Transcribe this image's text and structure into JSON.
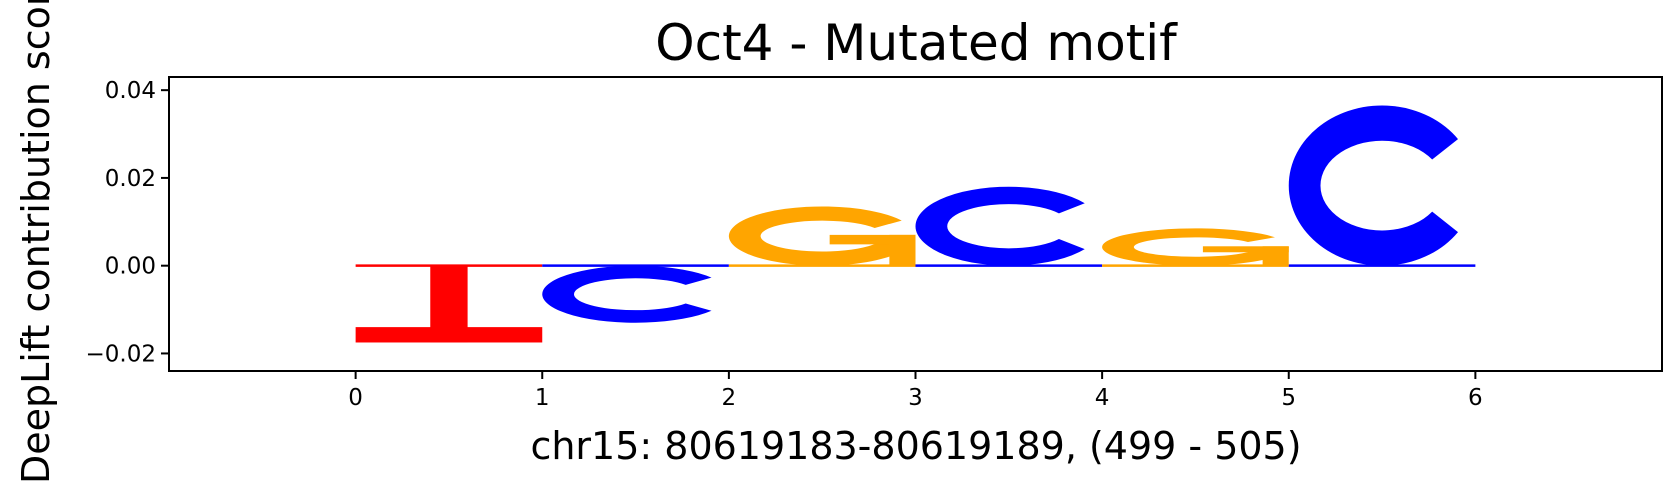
{
  "chart_data": {
    "type": "sequence-logo",
    "title": "Oct4 - Mutated motif",
    "xlabel": "chr15: 80619183-80619189, (499 - 505)",
    "ylabel": "DeepLift contribution score",
    "xlim": [
      -1,
      7
    ],
    "ylim": [
      -0.024,
      0.043
    ],
    "xticks": [
      "0",
      "1",
      "2",
      "3",
      "4",
      "5",
      "6"
    ],
    "yticks": [
      "0.04",
      "0.02",
      "0.00",
      "−0.02"
    ],
    "ytick_values": [
      0.04,
      0.02,
      0.0,
      -0.02
    ],
    "baseline": 0.0,
    "letters": [
      {
        "position": 0,
        "letter": "T",
        "value": -0.0175,
        "color": "#ff0000"
      },
      {
        "position": 1,
        "letter": "C",
        "value": -0.013,
        "color": "#0000ff"
      },
      {
        "position": 2,
        "letter": "G",
        "value": 0.0135,
        "color": "#ffa500"
      },
      {
        "position": 3,
        "letter": "C",
        "value": 0.018,
        "color": "#0000ff"
      },
      {
        "position": 4,
        "letter": "G",
        "value": 0.0085,
        "color": "#ffa500"
      },
      {
        "position": 5,
        "letter": "C",
        "value": 0.0365,
        "color": "#0000ff"
      }
    ],
    "colors": {
      "A": "#008000",
      "C": "#0000ff",
      "G": "#ffa500",
      "T": "#ff0000"
    }
  }
}
